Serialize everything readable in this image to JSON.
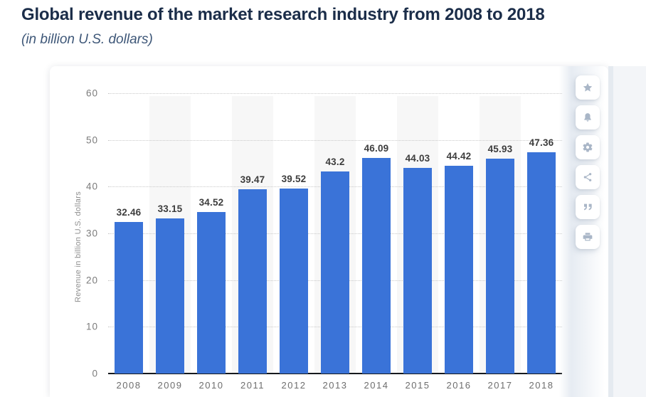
{
  "page": {
    "title": "Global revenue of the market research industry from 2008 to 2018",
    "subtitle": "(in billion U.S. dollars)"
  },
  "chart_data": {
    "type": "bar",
    "title": "Global revenue of the market research industry from 2008 to 2018",
    "subtitle": "(in billion U.S. dollars)",
    "categories": [
      "2008",
      "2009",
      "2010",
      "2011",
      "2012",
      "2013",
      "2014",
      "2015",
      "2016",
      "2017",
      "2018"
    ],
    "values": [
      32.46,
      33.15,
      34.52,
      39.47,
      39.52,
      43.2,
      46.09,
      44.03,
      44.42,
      45.93,
      47.36
    ],
    "value_labels": [
      "32.46",
      "33.15",
      "34.52",
      "39.47",
      "39.52",
      "43.2",
      "46.09",
      "44.03",
      "44.42",
      "45.93",
      "47.36"
    ],
    "xlabel": "",
    "ylabel": "Revenue in billion U.S. dollars",
    "ylim": [
      0,
      60
    ],
    "yticks": [
      0,
      10,
      20,
      30,
      40,
      50,
      60
    ],
    "grid": true,
    "legend": "none",
    "bar_color": "#3a73d8",
    "band_color": "#f7f7f7",
    "alternating_column_bands": "odd columns shaded"
  },
  "toolbar": {
    "buttons": [
      {
        "id": "favorite",
        "icon": "star-icon"
      },
      {
        "id": "alerts",
        "icon": "bell-icon"
      },
      {
        "id": "settings",
        "icon": "gear-icon"
      },
      {
        "id": "share",
        "icon": "share-icon"
      },
      {
        "id": "cite",
        "icon": "quote-icon"
      },
      {
        "id": "print",
        "icon": "printer-icon"
      }
    ]
  },
  "colors": {
    "title_text": "#1b2d49",
    "subtitle_text": "#3e5778",
    "bar": "#3a73d8",
    "column_band": "#f7f7f7",
    "gridline": "#c9c9c9",
    "axis_line": "#16191d",
    "tick_text": "#7c7c7c",
    "value_label_text": "#3d3d3d",
    "icon": "#a9b6c7"
  }
}
